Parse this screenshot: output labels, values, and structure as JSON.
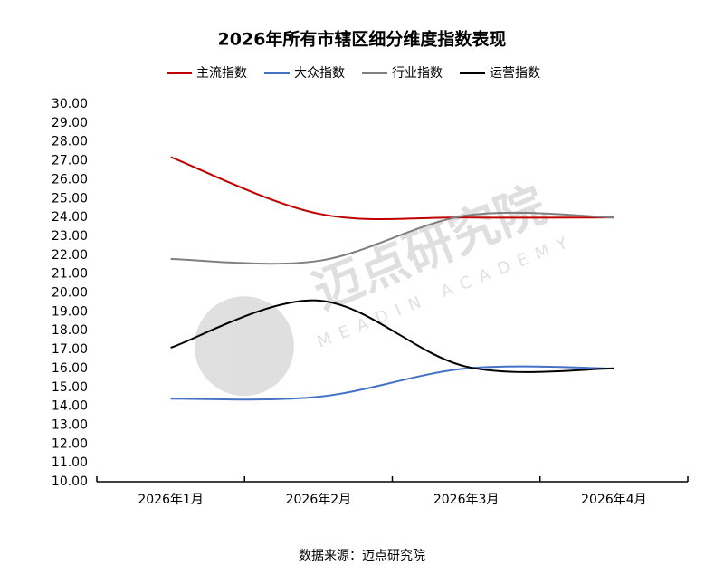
{
  "chart_data": {
    "type": "line",
    "title": "2026年所有市辖区细分维度指数表现",
    "categories": [
      "2026年1月",
      "2026年2月",
      "2026年3月",
      "2026年4月"
    ],
    "series": [
      {
        "name": "主流指数",
        "color": "#c00000",
        "values": [
          27.2,
          24.2,
          24.0,
          24.0
        ]
      },
      {
        "name": "大众指数",
        "color": "#4472c4",
        "values": [
          14.4,
          14.5,
          16.0,
          16.0
        ]
      },
      {
        "name": "行业指数",
        "color": "#7f7f7f",
        "values": [
          21.8,
          21.7,
          24.1,
          24.0
        ]
      },
      {
        "name": "运营指数",
        "color": "#000000",
        "values": [
          17.1,
          19.6,
          16.1,
          16.0
        ]
      }
    ],
    "ylim": [
      10,
      30
    ],
    "yticks": [
      {
        "value": 10,
        "label": "10.00"
      },
      {
        "value": 11,
        "label": "11.00"
      },
      {
        "value": 12,
        "label": "12.00"
      },
      {
        "value": 13,
        "label": "13.00"
      },
      {
        "value": 14,
        "label": "14.00"
      },
      {
        "value": 15,
        "label": "15.00"
      },
      {
        "value": 16,
        "label": "16.00"
      },
      {
        "value": 17,
        "label": "17.00"
      },
      {
        "value": 18,
        "label": "18.00"
      },
      {
        "value": 19,
        "label": "19.00"
      },
      {
        "value": 20,
        "label": "20.00"
      },
      {
        "value": 21,
        "label": "21.00"
      },
      {
        "value": 22,
        "label": "22.00"
      },
      {
        "value": 23,
        "label": "23.00"
      },
      {
        "value": 24,
        "label": "24.00"
      },
      {
        "value": 25,
        "label": "25.00"
      },
      {
        "value": 26,
        "label": "26.00"
      },
      {
        "value": 27,
        "label": "27.00"
      },
      {
        "value": 28,
        "label": "28.00"
      },
      {
        "value": 29,
        "label": "29.00"
      },
      {
        "value": 30,
        "label": "30.00"
      }
    ],
    "smooth": true,
    "legend": "top",
    "watermark": "迈点研究院",
    "watermark_sub": "MEADIN ACADEMY",
    "source": "数据来源：迈点研究院"
  }
}
